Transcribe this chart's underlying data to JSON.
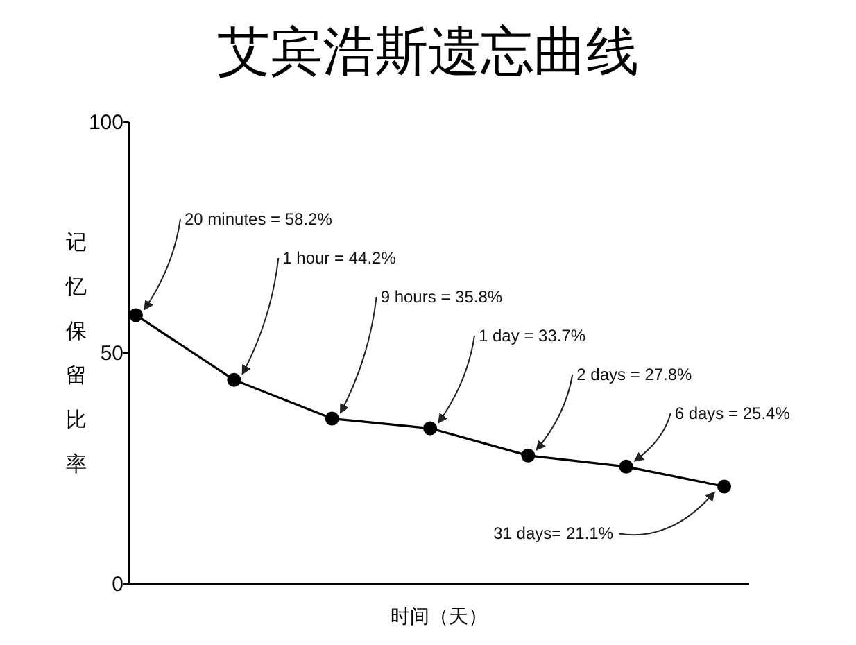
{
  "chart_data": {
    "type": "line",
    "title": "艾宾浩斯遗忘曲线",
    "xlabel": "时间（天）",
    "ylabel": "记忆保留比率",
    "categories": [
      null,
      null,
      null,
      null,
      null,
      null,
      null
    ],
    "series": [
      {
        "color": "#000000",
        "values": [
          58.2,
          44.2,
          35.8,
          33.7,
          27.8,
          25.4,
          21.1
        ],
        "value_labels": [
          "20 minutes = 58.2%",
          "1 hour = 44.2%",
          "9 hours = 35.8%",
          "1 day = 33.7%",
          "2 days = 27.8%",
          "6 days = 25.4%",
          "31 days= 21.1%"
        ]
      }
    ],
    "ylim": [
      0,
      100
    ],
    "yticks": [
      0,
      50,
      100
    ],
    "marker": "circle",
    "line_style": "solid",
    "grid": false
  }
}
